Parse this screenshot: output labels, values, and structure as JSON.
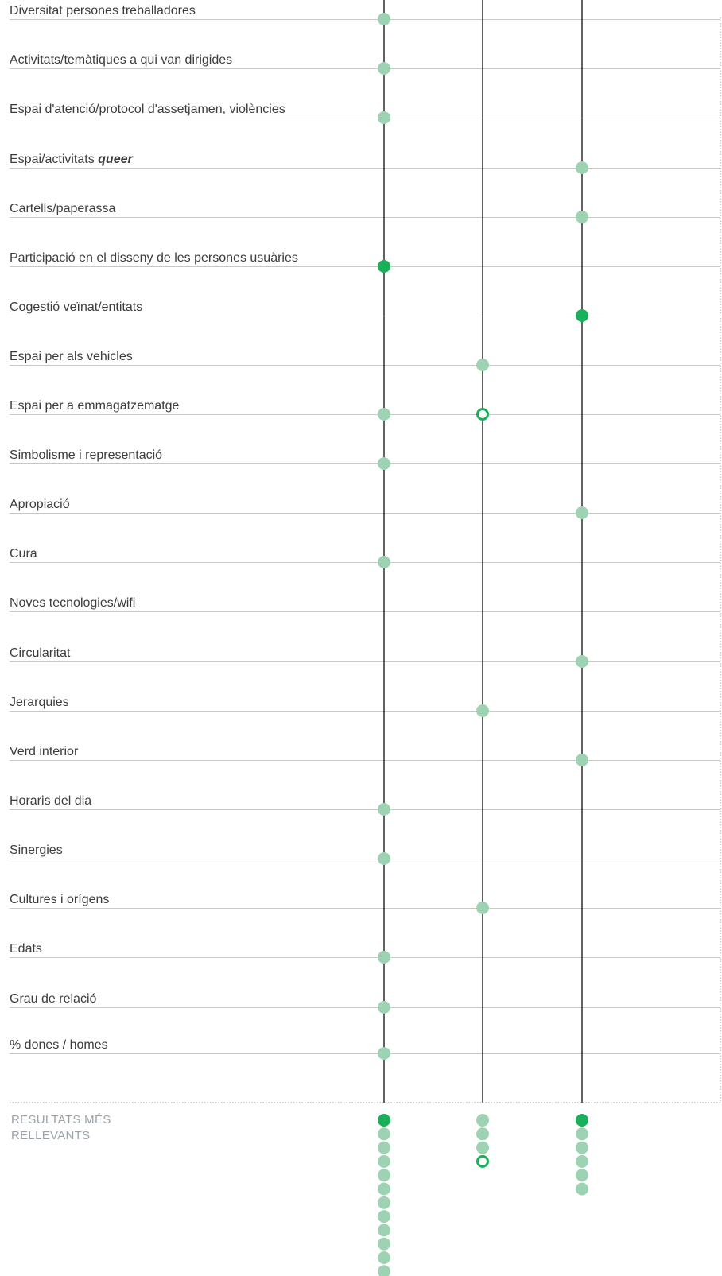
{
  "colors": {
    "dot_light": "#9dd3b2",
    "dot_strong": "#19b05a",
    "dot_outline": "#19b05a",
    "column_line": "#1f1f1f",
    "row_line": "#c7c7c7",
    "border_dotted": "#9a9a9a"
  },
  "rows": [
    {
      "label": "Diversitat persones treballadores",
      "marks": [
        {
          "col": 0,
          "kind": "light"
        }
      ]
    },
    {
      "label": "Activitats/temàtiques a qui van dirigides",
      "marks": [
        {
          "col": 0,
          "kind": "light"
        }
      ]
    },
    {
      "label": "Espai d'atenció/protocol d'assetjamen, violències",
      "marks": [
        {
          "col": 0,
          "kind": "light"
        }
      ]
    },
    {
      "label": "Espai/activitats ",
      "label_em": "queer",
      "marks": [
        {
          "col": 2,
          "kind": "light"
        }
      ]
    },
    {
      "label": "Cartells/paperassa",
      "marks": [
        {
          "col": 2,
          "kind": "light"
        }
      ]
    },
    {
      "label": "Participació en el disseny de les persones usuàries",
      "marks": [
        {
          "col": 0,
          "kind": "strong"
        }
      ]
    },
    {
      "label": "Cogestió veïnat/entitats",
      "marks": [
        {
          "col": 2,
          "kind": "strong"
        }
      ]
    },
    {
      "label": "Espai per als vehicles",
      "marks": [
        {
          "col": 1,
          "kind": "light"
        }
      ]
    },
    {
      "label": "Espai per a emmagatzematge",
      "marks": [
        {
          "col": 0,
          "kind": "light"
        },
        {
          "col": 1,
          "kind": "outline"
        }
      ]
    },
    {
      "label": "Simbolisme i representació",
      "marks": [
        {
          "col": 0,
          "kind": "light"
        }
      ]
    },
    {
      "label": "Apropiació",
      "marks": [
        {
          "col": 2,
          "kind": "light"
        }
      ]
    },
    {
      "label": "Cura",
      "marks": [
        {
          "col": 0,
          "kind": "light"
        }
      ]
    },
    {
      "label": "Noves tecnologies/wifi",
      "marks": []
    },
    {
      "label": "Circularitat",
      "marks": [
        {
          "col": 2,
          "kind": "light"
        }
      ]
    },
    {
      "label": "Jerarquies",
      "marks": [
        {
          "col": 1,
          "kind": "light"
        }
      ]
    },
    {
      "label": "Verd interior",
      "marks": [
        {
          "col": 2,
          "kind": "light"
        }
      ]
    },
    {
      "label": "Horaris del dia",
      "marks": [
        {
          "col": 0,
          "kind": "light"
        }
      ]
    },
    {
      "label": "Sinergies",
      "marks": [
        {
          "col": 0,
          "kind": "light"
        }
      ]
    },
    {
      "label": "Cultures i orígens",
      "marks": [
        {
          "col": 1,
          "kind": "light"
        }
      ]
    },
    {
      "label": "Edats",
      "marks": [
        {
          "col": 0,
          "kind": "light"
        }
      ]
    },
    {
      "label": "Grau de relació",
      "marks": [
        {
          "col": 0,
          "kind": "light"
        }
      ]
    },
    {
      "label": "% dones / homes",
      "marks": [
        {
          "col": 0,
          "kind": "light"
        }
      ]
    }
  ],
  "summary": {
    "label_line1": "RESULTATS MÉS",
    "label_line2": "RELLEVANTS",
    "columns": [
      [
        "strong",
        "light",
        "light",
        "light",
        "light",
        "light",
        "light",
        "light",
        "light",
        "light",
        "light",
        "light"
      ],
      [
        "light",
        "light",
        "light",
        "outline"
      ],
      [
        "strong",
        "light",
        "light",
        "light",
        "light",
        "light"
      ]
    ]
  }
}
